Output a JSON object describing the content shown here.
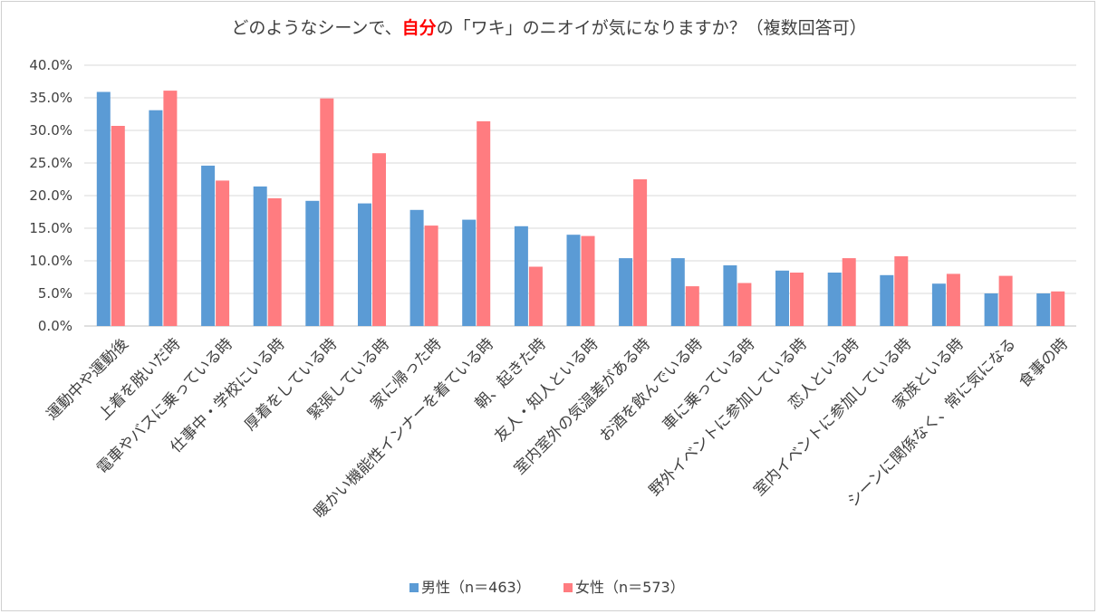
{
  "chart_data": {
    "type": "bar",
    "title_parts": [
      {
        "text": "どのようなシーンで、",
        "em": false
      },
      {
        "text": "自分",
        "em": true
      },
      {
        "text": "の「ワキ」のニオイが気になりますか？（複数回答可）",
        "em": false
      }
    ],
    "ylim": [
      0,
      40
    ],
    "ytick_values": [
      0,
      5,
      10,
      15,
      20,
      25,
      30,
      35,
      40
    ],
    "ytick_labels": [
      "0.0%",
      "5.0%",
      "10.0%",
      "15.0%",
      "20.0%",
      "25.0%",
      "30.0%",
      "35.0%",
      "40.0%"
    ],
    "grid": true,
    "legend_position": "bottom",
    "categories": [
      "運動中や運動後",
      "上着を脱いだ時",
      "電車やバスに乗っている時",
      "仕事中・学校にいる時",
      "厚着をしている時",
      "緊張している時",
      "家に帰った時",
      "暖かい機能性インナーを着ている時",
      "朝、起きた時",
      "友人・知人といる時",
      "室内室外の気温差がある時",
      "お酒を飲んでいる時",
      "車に乗っている時",
      "野外イベントに参加している時",
      "恋人といる時",
      "室内イベントに参加している時",
      "家族といる時",
      "シーンに関係なく、常に気になる",
      "食事の時"
    ],
    "series": [
      {
        "name": "男性（n＝463）",
        "color": "#5b9bd5",
        "values": [
          35.9,
          33.1,
          24.6,
          21.4,
          19.2,
          18.8,
          17.8,
          16.3,
          15.3,
          14.0,
          10.4,
          10.4,
          9.3,
          8.5,
          8.2,
          7.8,
          6.5,
          5.0,
          5.0
        ]
      },
      {
        "name": "女性（n＝573）",
        "color": "#ff7c80",
        "values": [
          30.7,
          36.1,
          22.3,
          19.6,
          34.9,
          26.5,
          15.4,
          31.4,
          9.1,
          13.8,
          22.5,
          6.1,
          6.6,
          8.2,
          10.4,
          10.7,
          8.0,
          7.7,
          5.3
        ]
      }
    ]
  }
}
